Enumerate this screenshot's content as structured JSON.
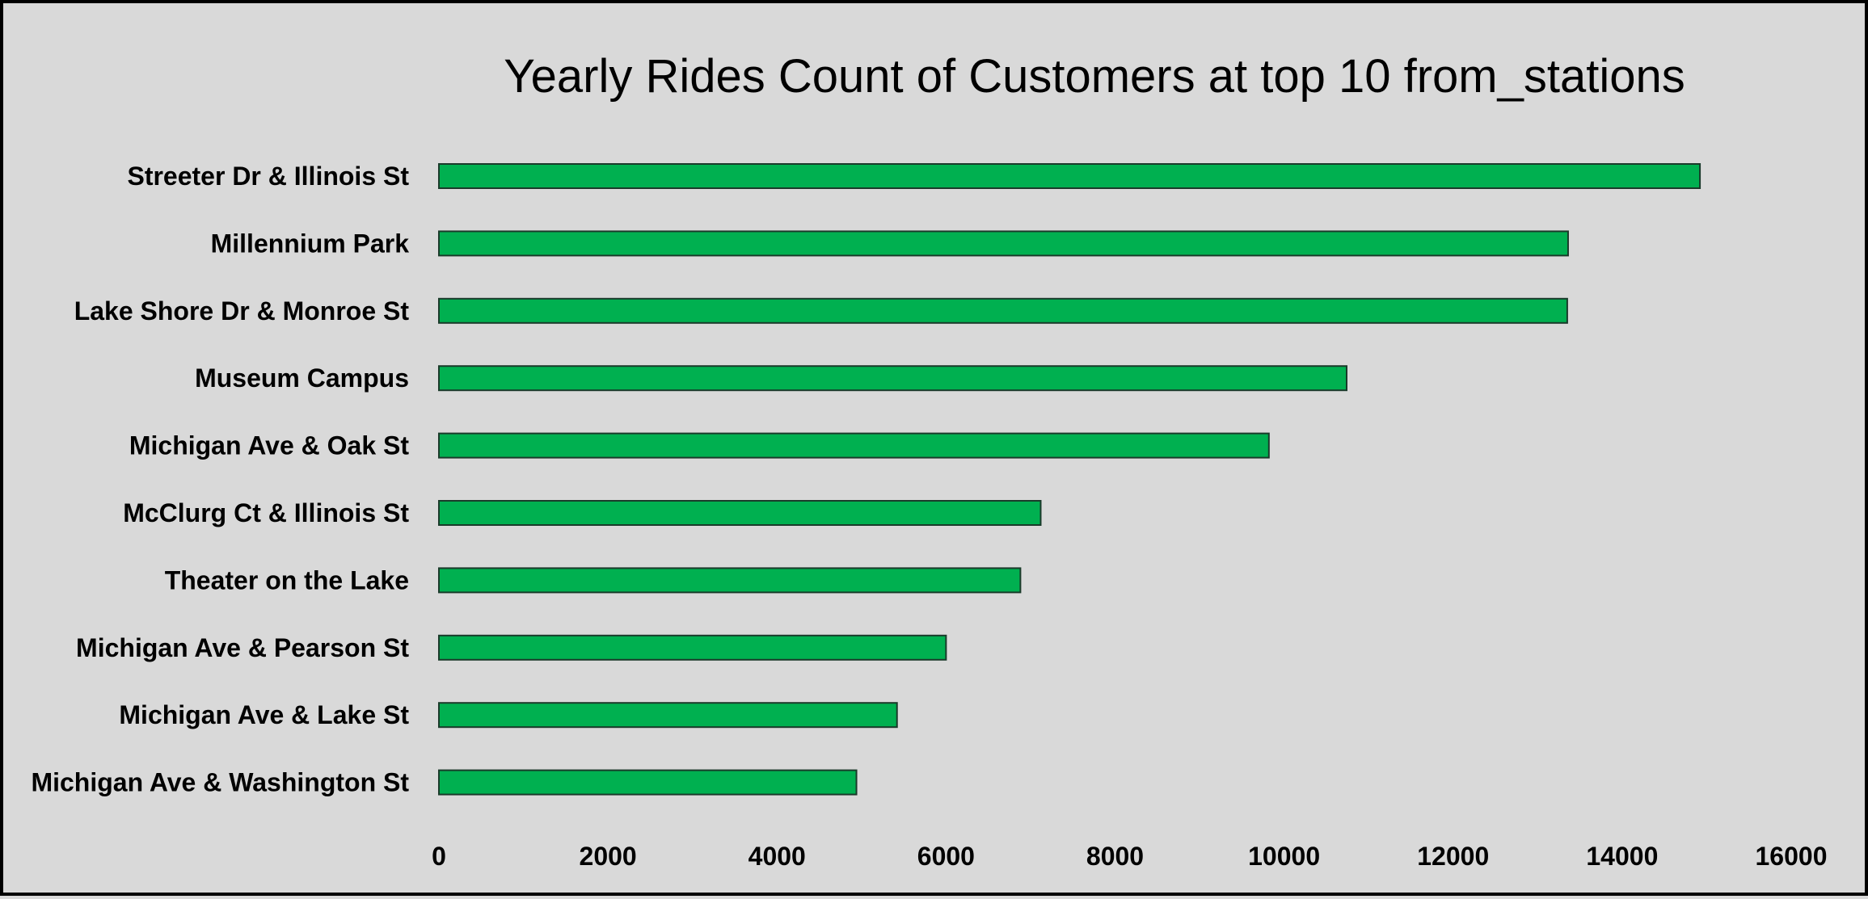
{
  "chart_data": {
    "type": "bar",
    "orientation": "horizontal",
    "title": "Yearly Rides Count of Customers at top 10 from_stations",
    "xlabel": "",
    "ylabel": "",
    "categories": [
      "Streeter Dr & Illinois St",
      "Millennium Park",
      "Lake Shore Dr & Monroe St",
      "Museum Campus",
      "Michigan Ave & Oak St",
      "McClurg Ct & Illinois St",
      "Theater on the Lake",
      "Michigan Ave & Pearson St",
      "Michigan Ave & Lake St",
      "Michigan Ave & Washington St"
    ],
    "values": [
      14920,
      13360,
      13350,
      10740,
      9820,
      7120,
      6880,
      6000,
      5420,
      4940
    ],
    "xlim": [
      0,
      16000
    ],
    "xticks": [
      0,
      2000,
      4000,
      6000,
      8000,
      10000,
      12000,
      14000,
      16000
    ],
    "grid": false,
    "legend": "none",
    "colors": {
      "bar_fill": "#00b050",
      "bar_stroke": "#1a3a2a",
      "background": "#d9d9d9",
      "border": "#000000"
    }
  }
}
